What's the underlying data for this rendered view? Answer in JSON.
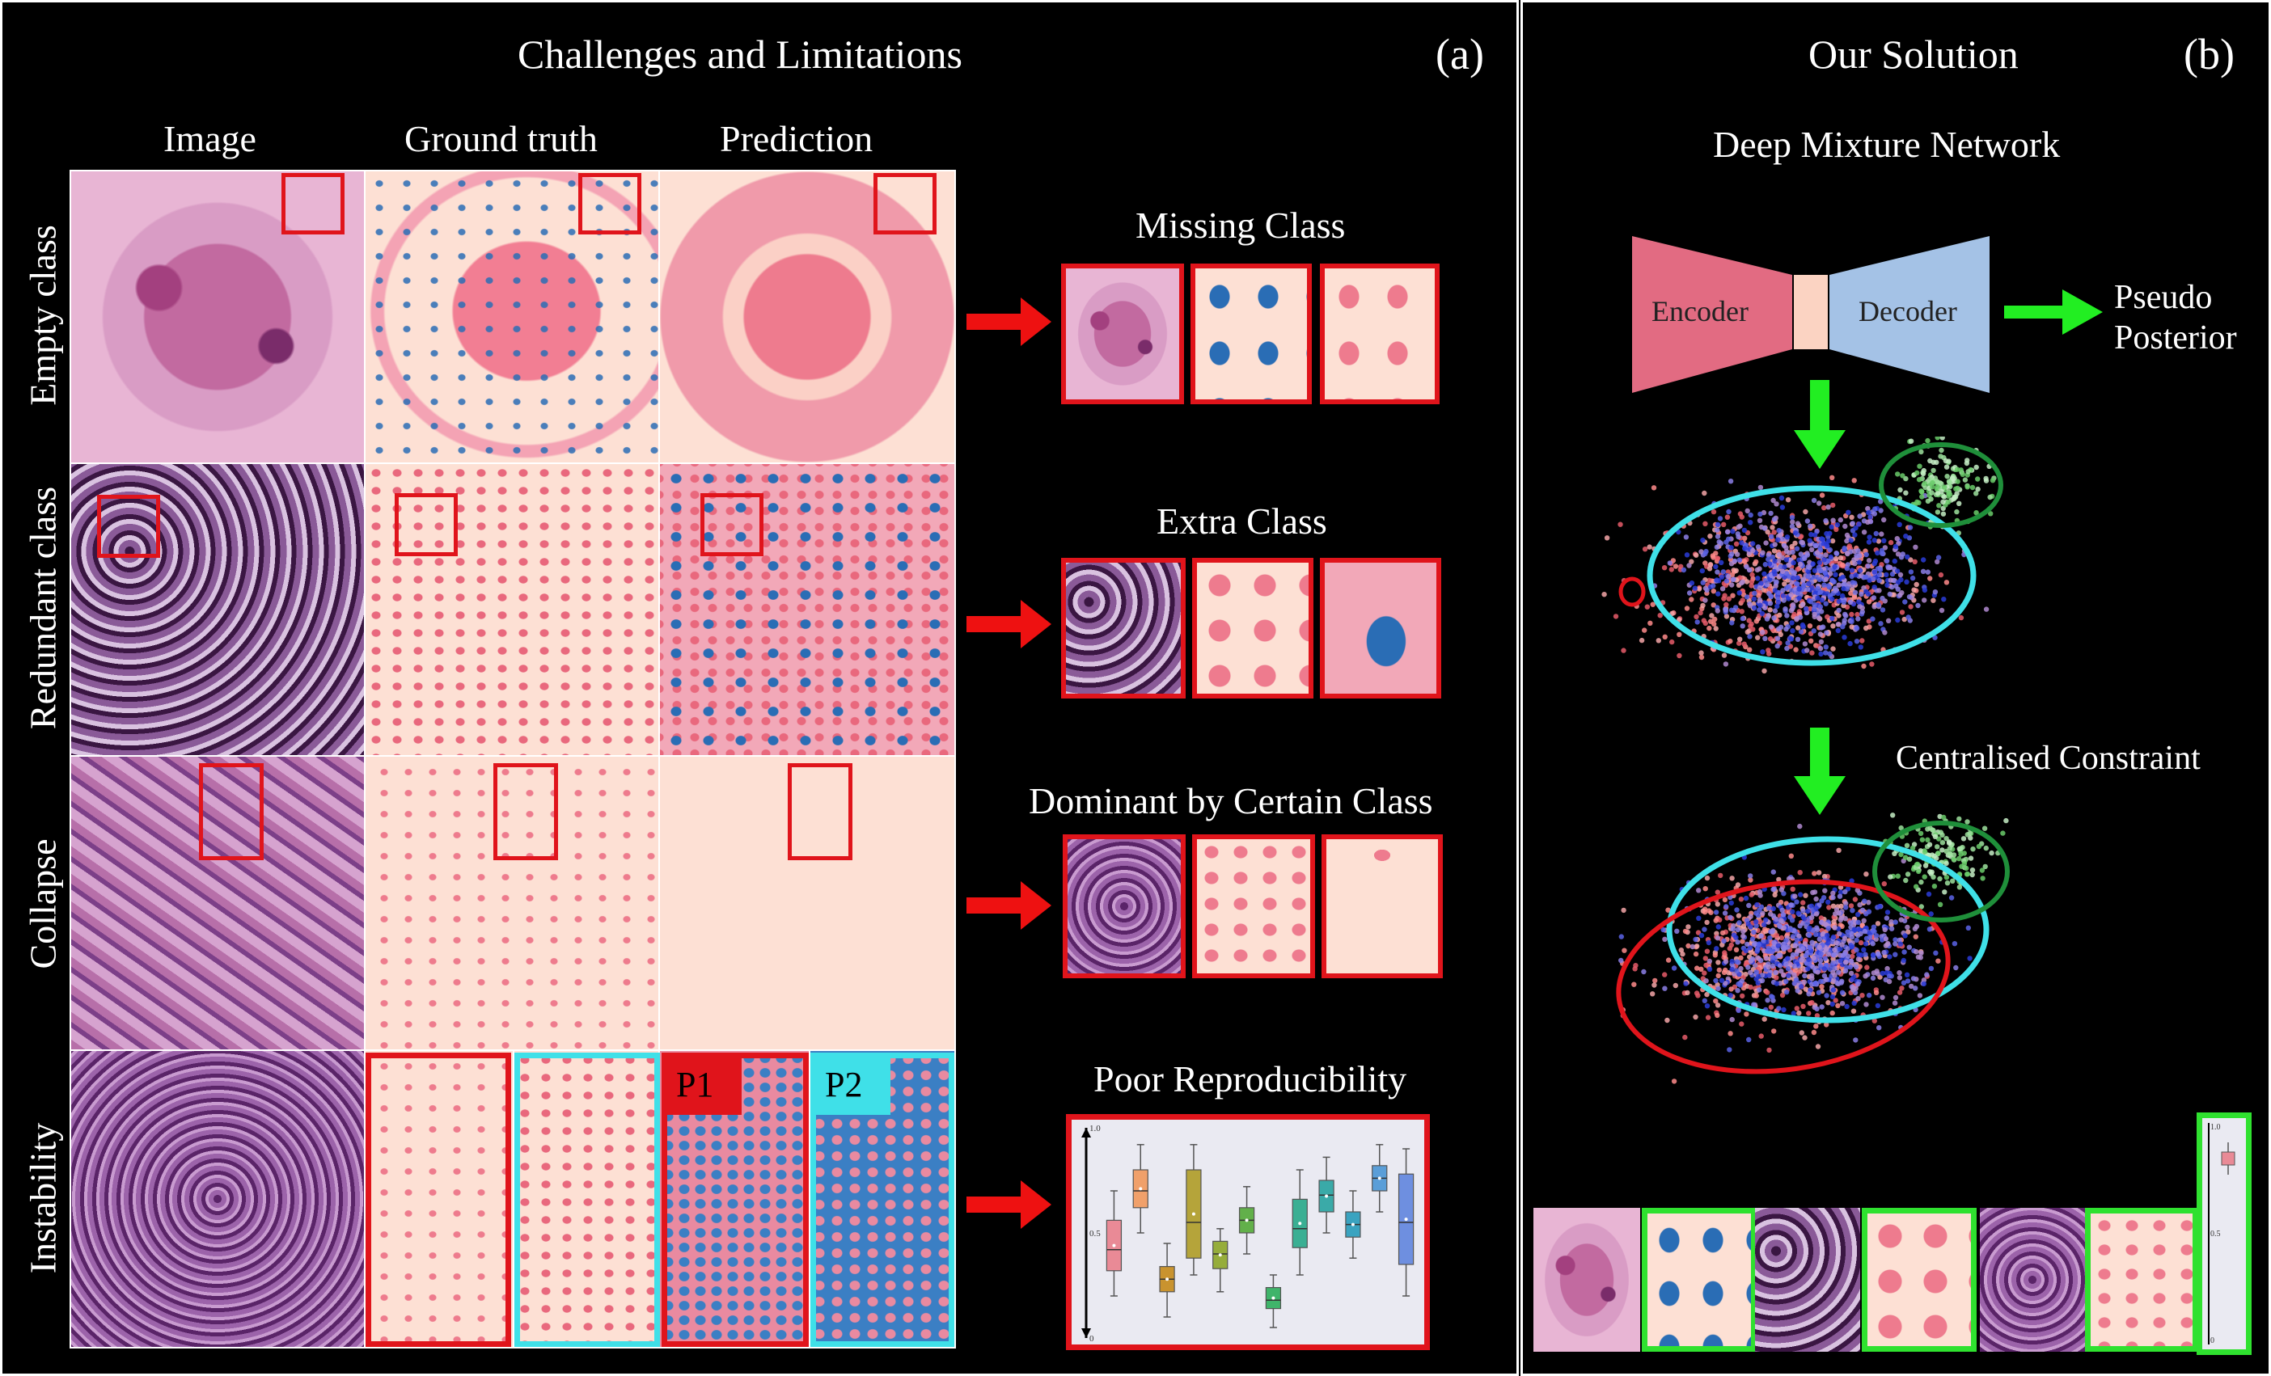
{
  "panel_a": {
    "title": "Challenges and Limitations",
    "tag": "(a)",
    "col_headers": [
      "Image",
      "Ground truth",
      "Prediction"
    ],
    "row_labels": [
      "Empty class",
      "Redundant class",
      "Collapse",
      "Instability"
    ],
    "issues": [
      "Missing Class",
      "Extra Class",
      "Dominant by Certain Class",
      "Poor Reproducibility"
    ],
    "p1": "P1",
    "p2": "P2",
    "boxplot": {
      "y_ticks": [
        "1.0",
        "0.5",
        "0"
      ],
      "boxes": [
        {
          "q1": 0.32,
          "median": 0.42,
          "q3": 0.56,
          "min": 0.2,
          "max": 0.7,
          "color": "#e98a96"
        },
        {
          "q1": 0.62,
          "median": 0.7,
          "q3": 0.8,
          "min": 0.5,
          "max": 0.92,
          "color": "#f0a06a"
        },
        {
          "q1": 0.22,
          "median": 0.28,
          "q3": 0.34,
          "min": 0.1,
          "max": 0.45,
          "color": "#c9932f"
        },
        {
          "q1": 0.38,
          "median": 0.55,
          "q3": 0.8,
          "min": 0.3,
          "max": 0.92,
          "color": "#b5a43a"
        },
        {
          "q1": 0.33,
          "median": 0.4,
          "q3": 0.46,
          "min": 0.22,
          "max": 0.52,
          "color": "#96ad3b"
        },
        {
          "q1": 0.5,
          "median": 0.56,
          "q3": 0.62,
          "min": 0.4,
          "max": 0.72,
          "color": "#62b04a"
        },
        {
          "q1": 0.14,
          "median": 0.18,
          "q3": 0.24,
          "min": 0.05,
          "max": 0.3,
          "color": "#3fb46a"
        },
        {
          "q1": 0.43,
          "median": 0.52,
          "q3": 0.66,
          "min": 0.3,
          "max": 0.8,
          "color": "#3aaf93"
        },
        {
          "q1": 0.6,
          "median": 0.68,
          "q3": 0.75,
          "min": 0.5,
          "max": 0.86,
          "color": "#3aaaa8"
        },
        {
          "q1": 0.48,
          "median": 0.54,
          "q3": 0.6,
          "min": 0.38,
          "max": 0.7,
          "color": "#3aa3c0"
        },
        {
          "q1": 0.7,
          "median": 0.76,
          "q3": 0.82,
          "min": 0.6,
          "max": 0.92,
          "color": "#5a9ed8"
        },
        {
          "q1": 0.35,
          "median": 0.55,
          "q3": 0.78,
          "min": 0.2,
          "max": 0.9,
          "color": "#6e8fe0"
        }
      ]
    }
  },
  "panel_b": {
    "title": "Our Solution",
    "tag": "(b)",
    "network_title": "Deep Mixture Network",
    "encoder": "Encoder",
    "decoder": "Decoder",
    "output_line1": "Pseudo",
    "output_line2": "Posterior",
    "constraint": "Centralised Constraint",
    "mini_y_ticks": [
      "1.0",
      "0.5",
      "0"
    ]
  },
  "colors": {
    "red_box": "#e0141b",
    "cyan": "#3fe0e8",
    "green": "#2fe12f",
    "encoder": "#e26b82",
    "decoder": "#a4c2e6",
    "bottleneck": "#fbd3c2",
    "arrow_green": "#22ee22",
    "arrow_red": "#ee1111"
  }
}
